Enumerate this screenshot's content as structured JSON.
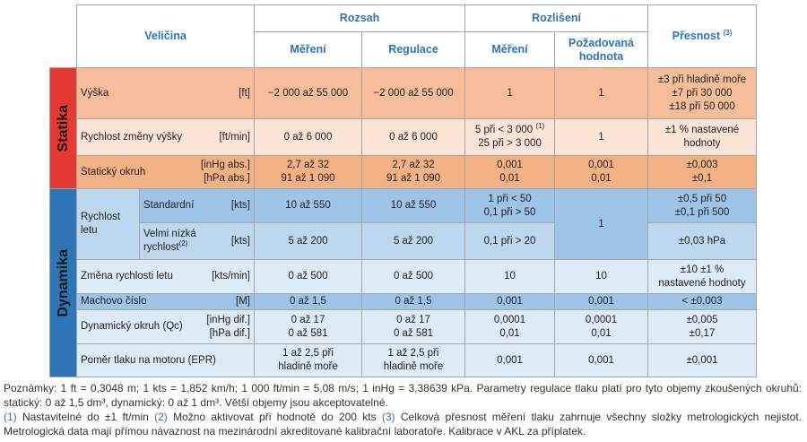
{
  "header": {
    "quantity": "Veličina",
    "range": "Rozsah",
    "resolution": "Rozlišení",
    "accuracy": "Přesnost",
    "accuracy_note": "(3)",
    "measure": "Měření",
    "regulation": "Regulace",
    "res_measure": "Měření",
    "required": "Požadovaná hodnota"
  },
  "groups": [
    "Statika",
    "Dynamika"
  ],
  "airspeed_group": "Rychlost letu",
  "table": {
    "rows": [
      {
        "label": "Výška",
        "units": [
          "[ft]"
        ],
        "measure": [
          "−2 000 až 55 000"
        ],
        "regulation": [
          "−2 000 až 55 000"
        ],
        "res": [
          "1"
        ],
        "required": [
          "1"
        ],
        "accuracy": [
          "±3 při hladině moře",
          "±7 při 30 000",
          "±18 při 50 000"
        ]
      },
      {
        "label": "Rychlost změny výšky",
        "units": [
          "[ft/min]"
        ],
        "measure": [
          "0 až 6 000"
        ],
        "regulation": [
          "0 až 6 000"
        ],
        "res": [
          "5 při < 3 000",
          "25 při > 3 000"
        ],
        "res_note": "(1)",
        "required": [
          "1"
        ],
        "accuracy": [
          "±1 % nastavené",
          "hodnoty"
        ]
      },
      {
        "label": "Statický okruh",
        "units": [
          "[inHg abs.]",
          "[hPa abs.]"
        ],
        "measure": [
          "2,7 až 32",
          "91 až 1 090"
        ],
        "regulation": [
          "2,7 až 32",
          "91 až 1 090"
        ],
        "res": [
          "0,001",
          "0,01"
        ],
        "required": [
          "0,001",
          "0,01"
        ],
        "accuracy": [
          "±0,003",
          "±0,1"
        ]
      },
      {
        "label": "Standardní",
        "units": [
          "[kts]"
        ],
        "measure": [
          "10 až 550"
        ],
        "regulation": [
          "10 až 550"
        ],
        "res": [
          "1 při < 50",
          "0,1 při > 50"
        ],
        "required": [
          "1"
        ],
        "accuracy": [
          "±0,5 při 50",
          "±0,1 při 500"
        ]
      },
      {
        "label": "Velmi nízká rychlost",
        "label_note": "(2)",
        "units": [
          "[kts]"
        ],
        "measure": [
          "5 až 200"
        ],
        "regulation": [
          "5 až 200"
        ],
        "res": [
          "0,1 při > 20"
        ],
        "accuracy": [
          "±0,03 hPa"
        ]
      },
      {
        "label": "Změna rychlosti letu",
        "units": [
          "[kts/min]"
        ],
        "measure": [
          "0 až 500"
        ],
        "regulation": [
          "0 až 500"
        ],
        "res": [
          "10"
        ],
        "required": [
          "10"
        ],
        "accuracy": [
          "±10 ±1 %",
          "nastavené hodnoty"
        ]
      },
      {
        "label": "Machovo číslo",
        "units": [
          "[M]"
        ],
        "measure": [
          "0 až 1,5"
        ],
        "regulation": [
          "0 až 1,5"
        ],
        "res": [
          "0,001"
        ],
        "required": [
          "0,001"
        ],
        "accuracy": [
          "< ±0,003"
        ]
      },
      {
        "label": "Dynamický okruh (Qc)",
        "units": [
          "[inHg dif.]",
          "[hPa dif.]"
        ],
        "measure": [
          "0 až 17",
          "0 až 581"
        ],
        "regulation": [
          "0 až 17",
          "0 až 581"
        ],
        "res": [
          "0,0001",
          "0,01"
        ],
        "required": [
          "0,0001",
          "0,01"
        ],
        "accuracy": [
          "±0,005",
          "±0,17"
        ]
      },
      {
        "label": "Poměr tlaku na motoru (EPR)",
        "units": [],
        "measure": [
          "1 až 2,5 při",
          "hladině moře"
        ],
        "regulation": [
          "1 až 2,5 při",
          "hladině moře"
        ],
        "res": [
          "0,001"
        ],
        "required": [
          "0,001"
        ],
        "accuracy": [
          "±0,001"
        ]
      }
    ]
  },
  "notes": {
    "text": "Poznámky: 1 ft = 0,3048 m; 1 kts = 1,852 km/h; 1 000 ft/min = 5,08 m/s; 1 inHg = 3,38639 kPa. Parametry regulace tlaku platí pro tyto objemy zkoušených okruhů: statický: 0 až 1,5 dm³, dynamický: 0 až 1 dm³. Větší objemy jsou akceptovatelné.",
    "footnotes": [
      {
        "mark": "(1)",
        "text": "Nastavitelné do ±1 ft/min"
      },
      {
        "mark": "(2)",
        "text": "Možno aktivovat při hodnotě do 200 kts"
      },
      {
        "mark": "(3)",
        "text": "Celková přesnost měření tlaku zahrnuje všechny složky metrologických nejistot. Metrologická data mají přímou návaznost na mezinárodní akreditované kalibrační laboratoře. Kalibrace v AKL za příplatek."
      }
    ]
  }
}
